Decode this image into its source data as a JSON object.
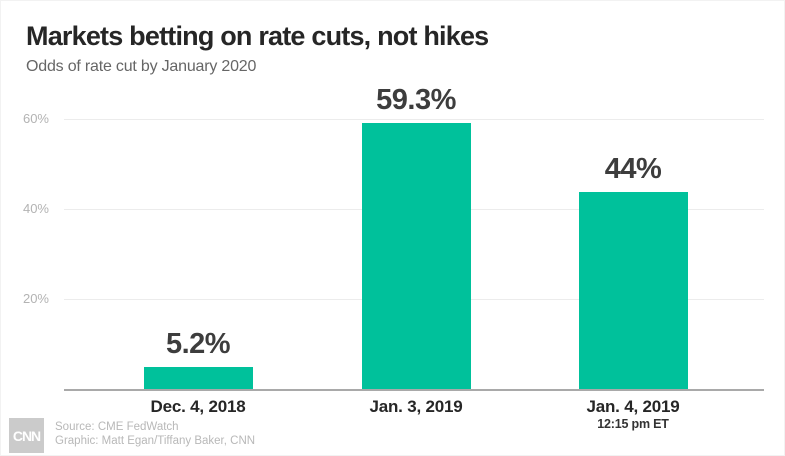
{
  "header": {
    "title": "Markets betting on rate cuts, not hikes",
    "subtitle": "Odds of rate cut by January 2020"
  },
  "chart_data": {
    "type": "bar",
    "title": "Markets betting on rate cuts, not hikes",
    "subtitle": "Odds of rate cut by January 2020",
    "categories": [
      "Dec. 4, 2018",
      "Jan. 3, 2019",
      "Jan. 4, 2019"
    ],
    "category_subnotes": [
      "",
      "",
      "12:15 pm ET"
    ],
    "values": [
      5.2,
      59.3,
      44
    ],
    "value_labels": [
      "5.2%",
      "59.3%",
      "44%"
    ],
    "yticks": [
      20,
      40,
      60
    ],
    "ytick_labels": [
      "20%",
      "40%",
      "60%"
    ],
    "ylim": [
      0,
      62
    ],
    "grid": true,
    "legend_position": "none",
    "bar_color": "#00c19b",
    "xlabel": "",
    "ylabel": ""
  },
  "footer": {
    "logo_text": "CNN",
    "source": "Source: CME FedWatch",
    "credit": "Graphic: Matt Egan/Tiffany Baker, CNN"
  },
  "colors": {
    "bar": "#00c19b",
    "title_text": "#262626",
    "subtitle_text": "#666666",
    "axis_line": "#a9a9a9",
    "gridline": "#ececec",
    "tick_label": "#b3b3b3",
    "value_label": "#3d3d3d",
    "footer_text": "#b8b8b8",
    "logo_background": "#cbcbcb"
  }
}
